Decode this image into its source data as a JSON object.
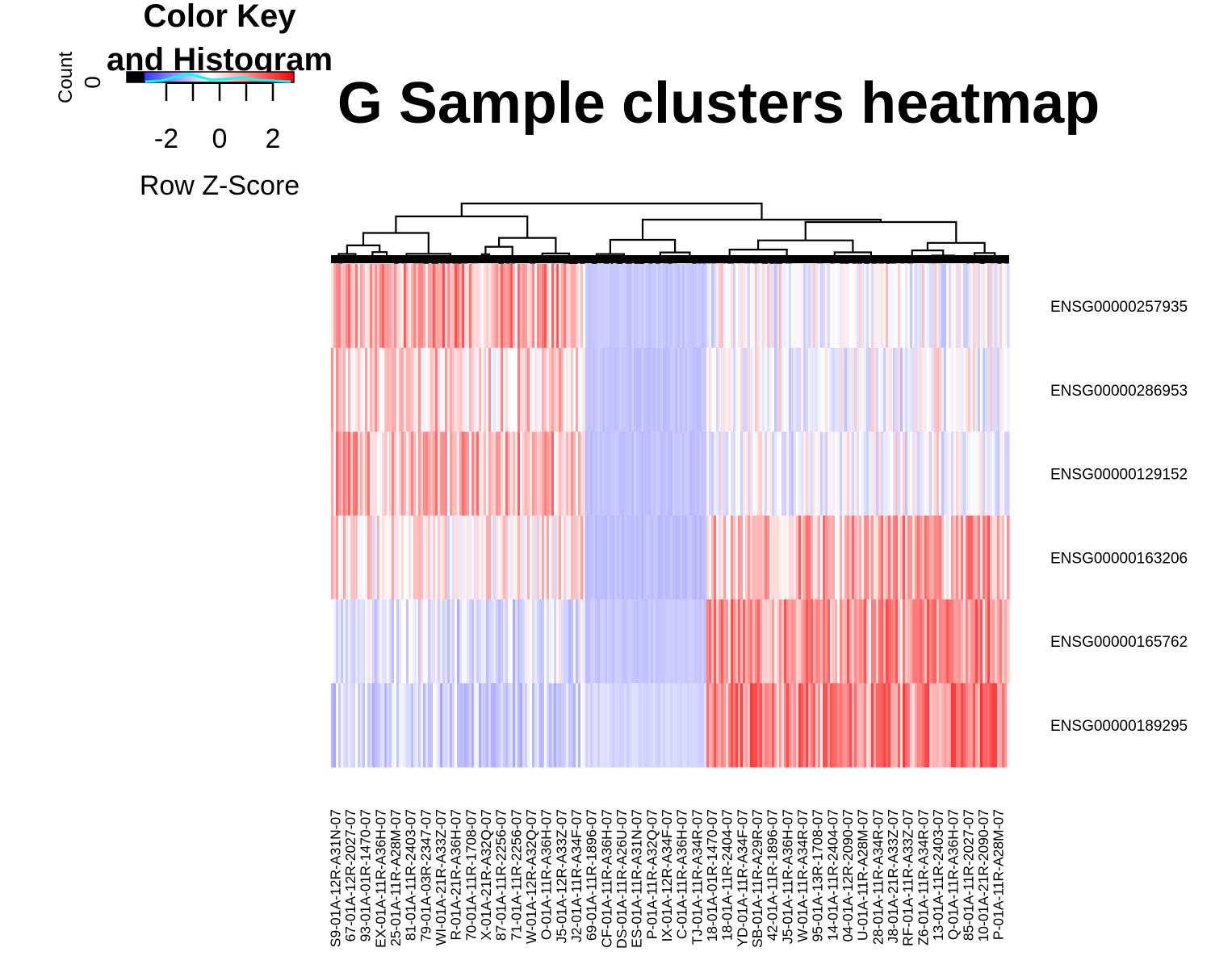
{
  "color_key": {
    "title_line1": "Color Key",
    "title_line2": "and Histogram",
    "count_label": "Count",
    "count_tick": "0",
    "ticks": [
      "-2",
      "0",
      "2"
    ],
    "xlabel": "Row Z-Score"
  },
  "colors": {
    "low": "#0000FF",
    "mid": "#FFFFFF",
    "high": "#FF0000",
    "histogram": "#00FFFF"
  },
  "chart_data": {
    "type": "heatmap",
    "title": "G Sample clusters heatmap",
    "rows": [
      "ENSG00000257935",
      "ENSG00000286953",
      "ENSG00000129152",
      "ENSG00000163206",
      "ENSG00000165762",
      "ENSG00000189295"
    ],
    "column_labels": [
      "S9-01A-12R-A31N-07",
      "67-01A-12R-2027-07",
      "93-01A-01R-1470-07",
      "EX-01A-11R-A36H-07",
      "25-01A-11R-A28M-07",
      "81-01A-11R-2403-07",
      "79-01A-03R-2347-07",
      "WI-01A-21R-A33Z-07",
      "R-01A-21R-A36H-07",
      "70-01A-11R-1708-07",
      "X-01A-21R-A32Q-07",
      "87-01A-11R-2256-07",
      "71-01A-11R-2256-07",
      "W-01A-12R-A32Q-07",
      "O-01A-11R-A36H-07",
      "J5-01A-12R-A33Z-07",
      "J2-01A-11R-A34F-07",
      "69-01A-11R-1896-07",
      "CF-01A-11R-A36H-07",
      "DS-01A-11R-A26U-07",
      "ES-01A-11R-A31N-07",
      "P-01A-11R-A32Q-07",
      "IX-01A-12R-A34F-07",
      "C-01A-11R-A36H-07",
      "TJ-01A-11R-A34R-07",
      "18-01A-01R-1470-07",
      "18-01A-11R-2404-07",
      "YD-01A-11R-A34F-07",
      "SB-01A-11R-A29R-07",
      "42-01A-11R-1896-07",
      "J5-01A-11R-A36H-07",
      "W-01A-11R-A34R-07",
      "95-01A-13R-1708-07",
      "14-01A-11R-2404-07",
      "04-01A-12R-2090-07",
      "U-01A-11R-A28M-07",
      "28-01A-11R-A34R-07",
      "J8-01A-21R-A33Z-07",
      "RF-01A-11R-A33Z-07",
      "Z6-01A-11R-A34R-07",
      "13-01A-11R-2403-07",
      "Q-01A-11R-A36H-07",
      "85-01A-11R-2027-07",
      "10-01A-21R-2090-07",
      "P-01A-11R-A28M-07"
    ],
    "n_columns": 280,
    "value_range": [
      -3.5,
      3.5
    ],
    "colorbar_ticks": [
      -2,
      0,
      2
    ],
    "colorbar_label": "Row Z-Score",
    "column_clusters": [
      {
        "span": [
          0,
          105
        ],
        "profile": [
          1.1,
          0.5,
          0.9,
          0.2,
          -0.9,
          -1.0
        ]
      },
      {
        "span": [
          105,
          155
        ],
        "profile": [
          -1.4,
          -1.5,
          -1.5,
          -1.6,
          -1.4,
          -1.0
        ]
      },
      {
        "span": [
          155,
          280
        ],
        "profile": [
          -0.3,
          -0.4,
          -0.4,
          1.0,
          1.3,
          1.5
        ]
      }
    ],
    "column_dendrogram": true,
    "legend_placement": "top-left"
  }
}
